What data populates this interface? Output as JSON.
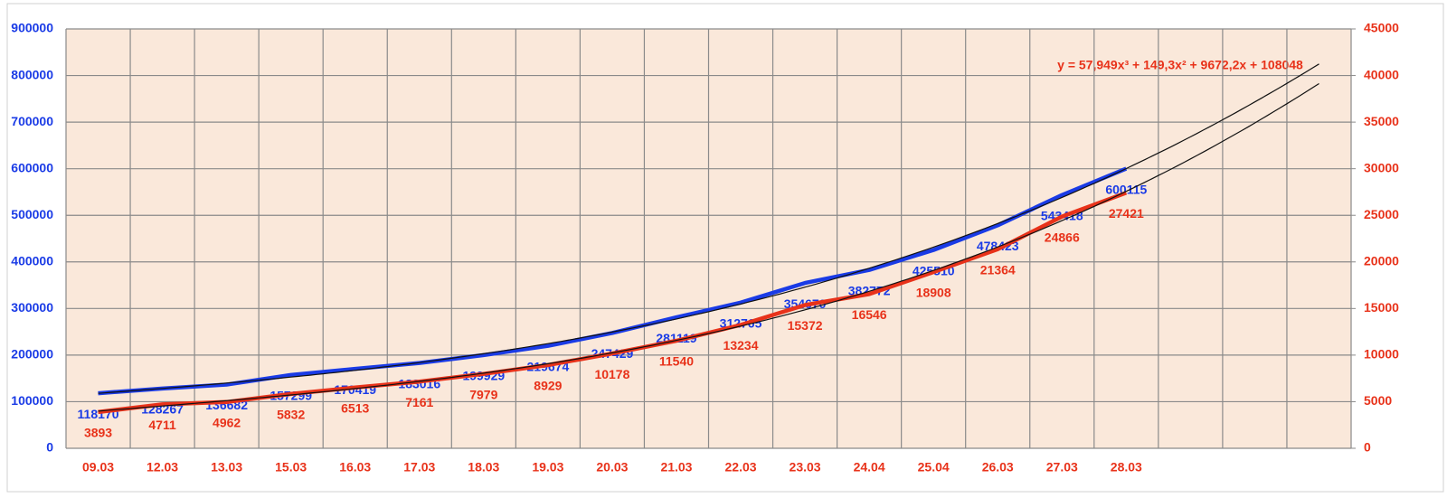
{
  "chart_data": {
    "type": "line",
    "categories": [
      "09.03",
      "12.03",
      "13.03",
      "15.03",
      "16.03",
      "17.03",
      "18.03",
      "19.03",
      "20.03",
      "21.03",
      "22.03",
      "23.03",
      "24.04",
      "25.04",
      "26.03",
      "27.03",
      "28.03",
      null,
      null,
      null
    ],
    "series": [
      {
        "color": "#1a3be6",
        "values": [
          118170,
          128267,
          136682,
          157299,
          170419,
          183016,
          199929,
          219674,
          247429,
          281119,
          312765,
          354670,
          382772,
          425510,
          478423,
          543418,
          600115,
          null,
          null,
          null
        ]
      },
      {
        "color": "#e8321a",
        "axis": "y2",
        "values": [
          3893,
          4711,
          4962,
          5832,
          6513,
          7161,
          7979,
          8929,
          10178,
          11540,
          13234,
          15372,
          16546,
          18908,
          21364,
          24866,
          27421,
          null,
          null,
          null
        ]
      }
    ],
    "ylim": [
      0,
      900000
    ],
    "yticks": [
      0,
      100000,
      200000,
      300000,
      400000,
      500000,
      600000,
      700000,
      800000,
      900000
    ],
    "y2lim": [
      0,
      45000
    ],
    "y2ticks": [
      0,
      5000,
      10000,
      15000,
      20000,
      25000,
      30000,
      35000,
      40000,
      45000
    ],
    "grid": true,
    "trendline": "polynomial",
    "annotation": "y = 57,949x³ + 149,3x² + 9672,2x + 108048"
  }
}
